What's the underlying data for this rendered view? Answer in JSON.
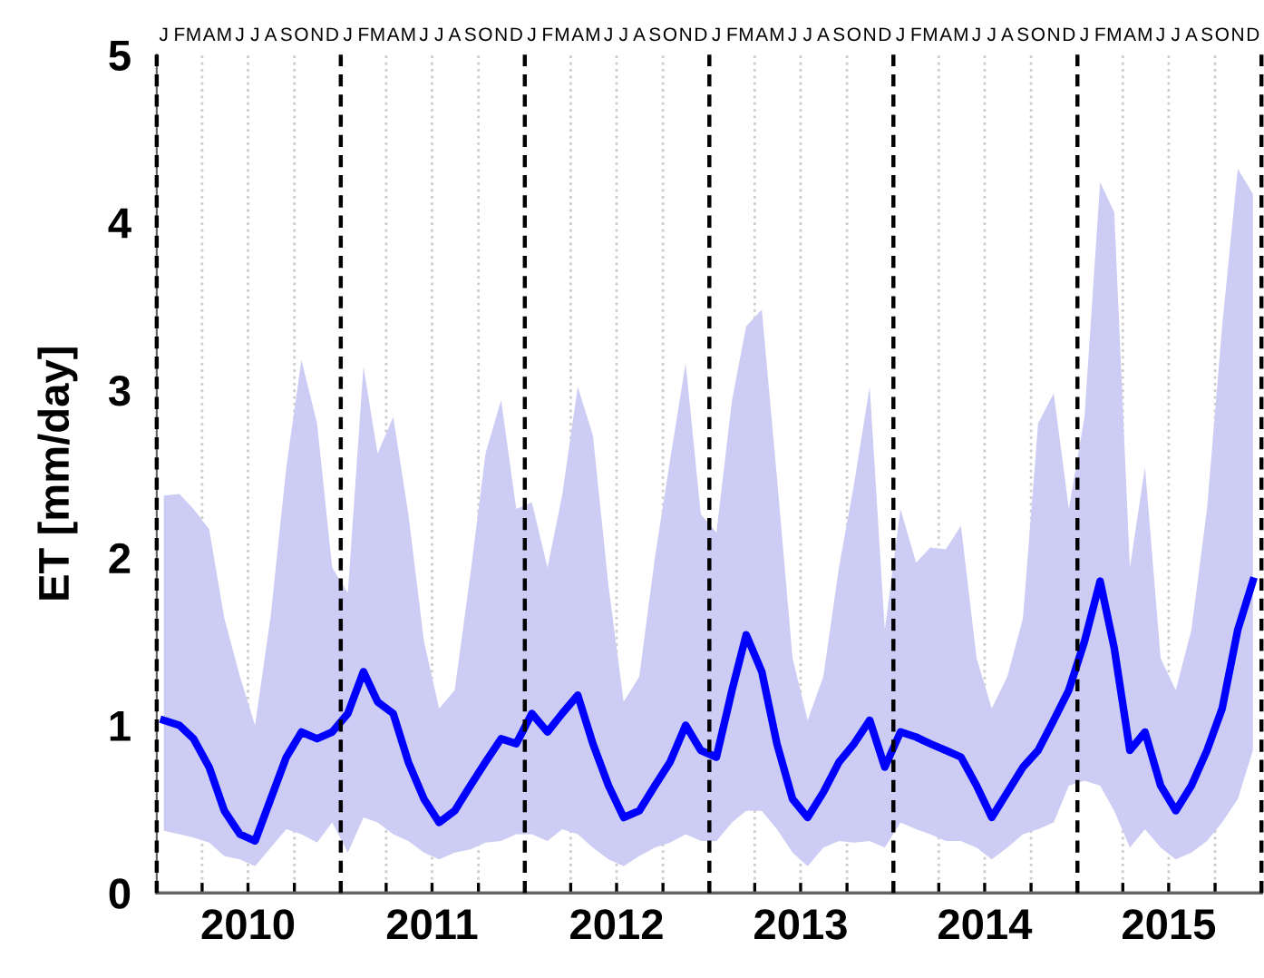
{
  "chart_data": {
    "type": "line",
    "ylabel": "ET [mm/day]",
    "x": [
      "2010-01-15",
      "2010-02-15",
      "2010-03-15",
      "2010-04-15",
      "2010-05-15",
      "2010-06-15",
      "2010-07-15",
      "2010-08-15",
      "2010-09-15",
      "2010-10-15",
      "2010-11-15",
      "2010-12-15",
      "2011-01-15",
      "2011-02-15",
      "2011-03-15",
      "2011-04-15",
      "2011-05-15",
      "2011-06-15",
      "2011-07-15",
      "2011-08-15",
      "2011-09-15",
      "2011-10-15",
      "2011-11-15",
      "2011-12-15",
      "2012-01-15",
      "2012-02-15",
      "2012-03-15",
      "2012-04-15",
      "2012-05-15",
      "2012-06-15",
      "2012-07-15",
      "2012-08-15",
      "2012-09-15",
      "2012-10-15",
      "2012-11-15",
      "2012-12-15",
      "2013-01-15",
      "2013-02-15",
      "2013-03-15",
      "2013-04-15",
      "2013-05-15",
      "2013-06-15",
      "2013-07-15",
      "2013-08-15",
      "2013-09-15",
      "2013-10-15",
      "2013-11-15",
      "2013-12-15",
      "2014-01-15",
      "2014-02-15",
      "2014-03-15",
      "2014-04-15",
      "2014-05-15",
      "2014-06-15",
      "2014-07-15",
      "2014-08-15",
      "2014-09-15",
      "2014-10-15",
      "2014-11-15",
      "2014-12-15",
      "2015-01-15",
      "2015-02-15",
      "2015-03-15",
      "2015-04-15",
      "2015-05-15",
      "2015-06-15",
      "2015-07-15",
      "2015-08-15",
      "2015-09-15",
      "2015-10-15",
      "2015-11-15",
      "2015-12-15"
    ],
    "series": [
      {
        "color": "#0000ff",
        "values": [
          1.03,
          1.0,
          0.92,
          0.75,
          0.49,
          0.35,
          0.31,
          0.56,
          0.81,
          0.96,
          0.92,
          0.96,
          1.07,
          1.32,
          1.14,
          1.07,
          0.78,
          0.56,
          0.42,
          0.49,
          0.64,
          0.78,
          0.92,
          0.89,
          1.07,
          0.96,
          1.07,
          1.18,
          0.89,
          0.64,
          0.45,
          0.49,
          0.64,
          0.78,
          1.0,
          0.85,
          0.81,
          1.21,
          1.54,
          1.32,
          0.89,
          0.56,
          0.45,
          0.6,
          0.78,
          0.89,
          1.03,
          0.75,
          0.96,
          0.93,
          0.89,
          0.85,
          0.81,
          0.64,
          0.45,
          0.6,
          0.75,
          0.85,
          1.03,
          1.21,
          1.5,
          1.86,
          1.46,
          0.85,
          0.96,
          0.64,
          0.49,
          0.64,
          0.85,
          1.1,
          1.57,
          1.86
        ],
        "lower": [
          0.37,
          0.35,
          0.33,
          0.3,
          0.22,
          0.2,
          0.16,
          0.27,
          0.38,
          0.35,
          0.3,
          0.42,
          0.24,
          0.45,
          0.42,
          0.35,
          0.31,
          0.24,
          0.2,
          0.24,
          0.26,
          0.3,
          0.31,
          0.35,
          0.35,
          0.31,
          0.38,
          0.35,
          0.27,
          0.2,
          0.16,
          0.22,
          0.27,
          0.3,
          0.35,
          0.31,
          0.31,
          0.42,
          0.49,
          0.49,
          0.38,
          0.24,
          0.16,
          0.27,
          0.31,
          0.3,
          0.31,
          0.27,
          0.42,
          0.38,
          0.35,
          0.31,
          0.31,
          0.27,
          0.2,
          0.27,
          0.35,
          0.38,
          0.42,
          0.64,
          0.67,
          0.64,
          0.49,
          0.27,
          0.38,
          0.27,
          0.2,
          0.24,
          0.31,
          0.42,
          0.56,
          0.85
        ],
        "upper": [
          2.37,
          2.38,
          2.29,
          2.17,
          1.64,
          1.29,
          1.0,
          1.65,
          2.54,
          3.18,
          2.8,
          1.94,
          1.79,
          3.14,
          2.62,
          2.84,
          2.26,
          1.5,
          1.1,
          1.21,
          1.9,
          2.62,
          2.94,
          2.29,
          2.33,
          1.94,
          2.37,
          3.02,
          2.73,
          1.83,
          1.14,
          1.29,
          2.0,
          2.58,
          3.16,
          2.26,
          2.15,
          2.94,
          3.38,
          3.48,
          2.48,
          1.4,
          1.03,
          1.29,
          1.94,
          2.44,
          3.02,
          1.57,
          2.29,
          1.97,
          2.06,
          2.05,
          2.19,
          1.4,
          1.1,
          1.29,
          1.64,
          2.8,
          2.98,
          2.29,
          2.84,
          4.24,
          4.06,
          1.94,
          2.54,
          1.4,
          1.21,
          1.57,
          2.29,
          3.38,
          4.32,
          4.17
        ]
      }
    ],
    "xlim": [
      "2010-01-01",
      "2016-01-01"
    ],
    "xticks": [
      {
        "value": "2010-04-01",
        "label": null
      },
      {
        "value": "2010-07-01",
        "label": "2010"
      },
      {
        "value": "2010-10-01",
        "label": null
      },
      {
        "value": "2011-04-01",
        "label": null
      },
      {
        "value": "2011-07-01",
        "label": "2011"
      },
      {
        "value": "2011-10-01",
        "label": null
      },
      {
        "value": "2012-04-01",
        "label": null
      },
      {
        "value": "2012-07-01",
        "label": "2012"
      },
      {
        "value": "2012-10-01",
        "label": null
      },
      {
        "value": "2013-04-01",
        "label": null
      },
      {
        "value": "2013-07-01",
        "label": "2013"
      },
      {
        "value": "2013-10-01",
        "label": null
      },
      {
        "value": "2014-04-01",
        "label": null
      },
      {
        "value": "2014-07-01",
        "label": "2014"
      },
      {
        "value": "2014-10-01",
        "label": null
      },
      {
        "value": "2015-04-01",
        "label": null
      },
      {
        "value": "2015-07-01",
        "label": "2015"
      },
      {
        "value": "2015-10-01",
        "label": null
      }
    ],
    "annotations": [
      "J",
      "F",
      "M",
      "A",
      "M",
      "J",
      "J",
      "A",
      "S",
      "O",
      "N",
      "D",
      "J",
      "F",
      "M",
      "A",
      "M",
      "J",
      "J",
      "A",
      "S",
      "O",
      "N",
      "D",
      "J",
      "F",
      "M",
      "A",
      "M",
      "J",
      "J",
      "A",
      "S",
      "O",
      "N",
      "D",
      "J",
      "F",
      "M",
      "A",
      "M",
      "J",
      "J",
      "A",
      "S",
      "O",
      "N",
      "D",
      "J",
      "F",
      "M",
      "A",
      "M",
      "J",
      "J",
      "A",
      "S",
      "O",
      "N",
      "D",
      "J",
      "F",
      "M",
      "A",
      "M",
      "J",
      "J",
      "A",
      "S",
      "O",
      "N",
      "D"
    ],
    "ylim": [
      0,
      5
    ],
    "yticks": [
      0,
      1,
      2,
      3,
      4,
      5
    ],
    "grid": "x",
    "marker": "none",
    "line_style": "solid",
    "ref_lines": [
      {
        "axis": "x",
        "value": "2010-01-01",
        "color": "#000000",
        "line_style": "dashed"
      },
      {
        "axis": "x",
        "value": "2011-01-01",
        "color": "#000000",
        "line_style": "dashed"
      },
      {
        "axis": "x",
        "value": "2012-01-01",
        "color": "#000000",
        "line_style": "dashed"
      },
      {
        "axis": "x",
        "value": "2013-01-01",
        "color": "#000000",
        "line_style": "dashed"
      },
      {
        "axis": "x",
        "value": "2014-01-01",
        "color": "#000000",
        "line_style": "dashed"
      },
      {
        "axis": "x",
        "value": "2015-01-01",
        "color": "#000000",
        "line_style": "dashed"
      },
      {
        "axis": "x",
        "value": "2016-01-01",
        "color": "#000000",
        "line_style": "dashed"
      }
    ]
  }
}
